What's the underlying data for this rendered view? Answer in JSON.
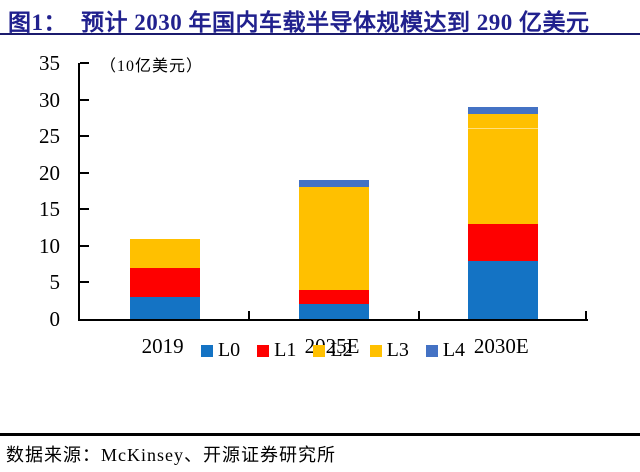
{
  "header": {
    "title_prefix": "图1：",
    "title_text": "预计 2030 年国内车载半导体规模达到 290 亿美元"
  },
  "colors": {
    "title": "#21218E",
    "axis": "#000000",
    "l0_blue": "#1473C4",
    "l1_red": "#FE0000",
    "l2_gold": "#FFC000",
    "l3_gold": "#FFC000",
    "l4_slate": "#4472C4"
  },
  "chart_data": {
    "type": "bar",
    "subtype": "stacked",
    "title": "预计 2030 年国内车载半导体规模达到 290 亿美元",
    "unit_label": "（10亿美元）",
    "categories": [
      "2019",
      "2025E",
      "2030E"
    ],
    "series": [
      {
        "name": "L0",
        "color": "#1473C4",
        "values": [
          3,
          2,
          8
        ]
      },
      {
        "name": "L1",
        "color": "#FE0000",
        "values": [
          4,
          2,
          5
        ]
      },
      {
        "name": "L2",
        "color": "#FFC000",
        "values": [
          4,
          14,
          13
        ]
      },
      {
        "name": "L3",
        "color": "#FFC000",
        "values": [
          0,
          0,
          2
        ]
      },
      {
        "name": "L4",
        "color": "#4472C4",
        "values": [
          0,
          1,
          1
        ]
      }
    ],
    "totals": [
      11,
      19,
      29
    ],
    "xlabel": "",
    "ylabel": "",
    "ylim": [
      0,
      35
    ],
    "yticks": [
      0,
      5,
      10,
      15,
      20,
      25,
      30,
      35
    ],
    "grid": false,
    "legend_position": "bottom",
    "tick_direction": "inside"
  },
  "footer": {
    "source_text": "数据来源：McKinsey、开源证券研究所"
  }
}
